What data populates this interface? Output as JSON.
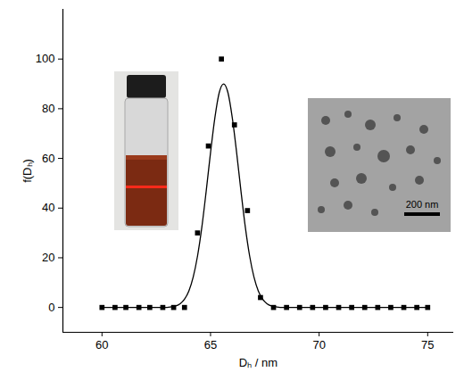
{
  "chart_data": {
    "type": "scatter",
    "x_label": "Dₕ / nm",
    "y_label": "f(Dₕ)",
    "xlim": [
      58.2,
      76.2
    ],
    "xticks": [
      60,
      65,
      70,
      75
    ],
    "ylim": [
      -10,
      120
    ],
    "yticks": [
      0,
      20,
      40,
      60,
      80,
      100
    ],
    "grid": false,
    "series": [
      {
        "type": "scatter",
        "marker": "square",
        "color": "#000000",
        "x": [
          60.0,
          60.6,
          61.1,
          61.7,
          62.2,
          62.8,
          63.3,
          63.8,
          64.4,
          64.9,
          65.5,
          66.1,
          66.7,
          67.3,
          67.9,
          68.5,
          69.1,
          69.7,
          70.3,
          70.9,
          71.5,
          72.1,
          72.7,
          73.3,
          73.9,
          74.5,
          75.0
        ],
        "values": [
          0,
          0,
          0,
          0,
          0,
          0,
          0,
          0,
          30,
          65,
          100,
          73.5,
          39,
          4,
          0,
          0,
          0,
          0,
          0,
          0,
          0,
          0,
          0,
          0,
          0,
          0,
          0
        ]
      },
      {
        "type": "line",
        "line_style": "solid",
        "color": "#000000",
        "x": [
          60.0,
          63.0,
          63.2,
          63.4,
          63.6,
          63.8,
          64.0,
          64.2,
          64.4,
          64.6,
          64.8,
          65.0,
          65.2,
          65.4,
          65.6,
          65.8,
          66.0,
          66.2,
          66.4,
          66.6,
          66.8,
          67.0,
          67.2,
          67.4,
          67.6,
          67.8,
          68.0,
          68.2,
          75.0
        ],
        "values": [
          0,
          0,
          0.25,
          0.6,
          1.5,
          3.3,
          6.6,
          12.2,
          20.7,
          32.4,
          46.9,
          62.4,
          76.4,
          86.5,
          90,
          86.5,
          76.4,
          62.4,
          46.9,
          32.4,
          20.7,
          12.2,
          6.6,
          3.3,
          1.5,
          0.6,
          0.25,
          0,
          0
        ]
      }
    ],
    "annotations": [
      "200 nm"
    ]
  }
}
